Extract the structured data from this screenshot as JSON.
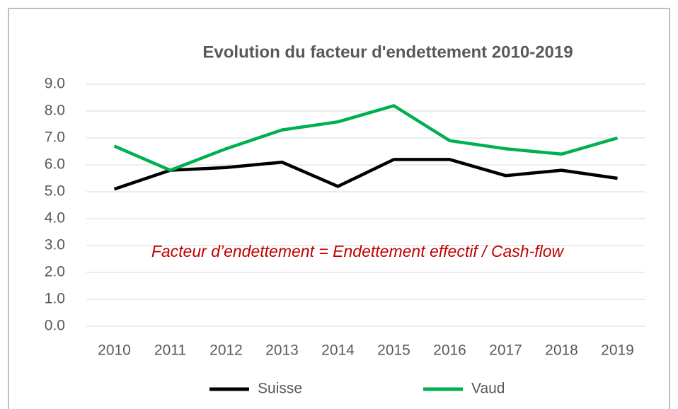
{
  "chart_data": {
    "type": "line",
    "title": "Evolution du facteur d'endettement 2010-2019",
    "annotation": "Facteur d’endettement = Endettement effectif / Cash-flow",
    "categories": [
      "2010",
      "2011",
      "2012",
      "2013",
      "2014",
      "2015",
      "2016",
      "2017",
      "2018",
      "2019"
    ],
    "series": [
      {
        "name": "Suisse",
        "color": "#000000",
        "values": [
          5.1,
          5.8,
          5.9,
          6.1,
          5.2,
          6.2,
          6.2,
          5.6,
          5.8,
          5.5
        ]
      },
      {
        "name": "Vaud",
        "color": "#00b050",
        "values": [
          6.7,
          5.8,
          6.6,
          7.3,
          7.6,
          8.2,
          6.9,
          6.6,
          6.4,
          7.0
        ]
      }
    ],
    "ylim": [
      0,
      9
    ],
    "yticks": [
      {
        "value": 0,
        "label": "0.0"
      },
      {
        "value": 1,
        "label": "1.0"
      },
      {
        "value": 2,
        "label": "2.0"
      },
      {
        "value": 3,
        "label": "3.0"
      },
      {
        "value": 4,
        "label": "4.0"
      },
      {
        "value": 5,
        "label": "5.0"
      },
      {
        "value": 6,
        "label": "6.0"
      },
      {
        "value": 7,
        "label": "7.0"
      },
      {
        "value": 8,
        "label": "8.0"
      },
      {
        "value": 9,
        "label": "9.0"
      }
    ],
    "grid": true,
    "legend": "bottom"
  }
}
